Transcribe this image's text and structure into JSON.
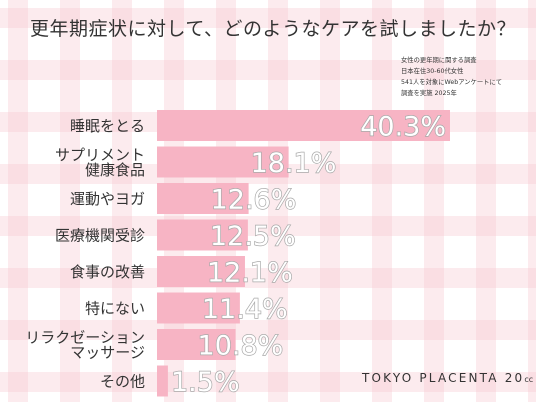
{
  "title": "更年期症状に対して、どのようなケアを試しましたか？",
  "survey_note": [
    "女性の更年期に関する調査",
    "日本在住30-60代女性",
    "541人を対象にWebアンケートにて",
    "調査を実施 2025年"
  ],
  "brand": {
    "name": "TOKYO PLACENTA 20",
    "suffix": "cc"
  },
  "colors": {
    "bar": "#f7b4c4",
    "grid_line": "#f6cbd3",
    "text": "#333333",
    "label_fill": "#ffffff",
    "label_stroke": "#a9a9a9"
  },
  "chart_data": {
    "type": "bar",
    "orientation": "horizontal",
    "categories": [
      [
        "睡眠をとる"
      ],
      [
        "サプリメント",
        "健康食品"
      ],
      [
        "運動やヨガ"
      ],
      [
        "医療機関受診"
      ],
      [
        "食事の改善"
      ],
      [
        "特にない"
      ],
      [
        "リラクゼーション",
        "マッサージ"
      ],
      [
        "その他"
      ]
    ],
    "values": [
      40.3,
      18.1,
      12.6,
      12.5,
      12.1,
      11.4,
      10.8,
      1.5
    ],
    "value_labels": [
      "40.3%",
      "18.1%",
      "12.6%",
      "12.5%",
      "12.1%",
      "11.4%",
      "10.8%",
      "1.5%"
    ],
    "unit": "%",
    "xlim": [
      0,
      40.3
    ]
  }
}
